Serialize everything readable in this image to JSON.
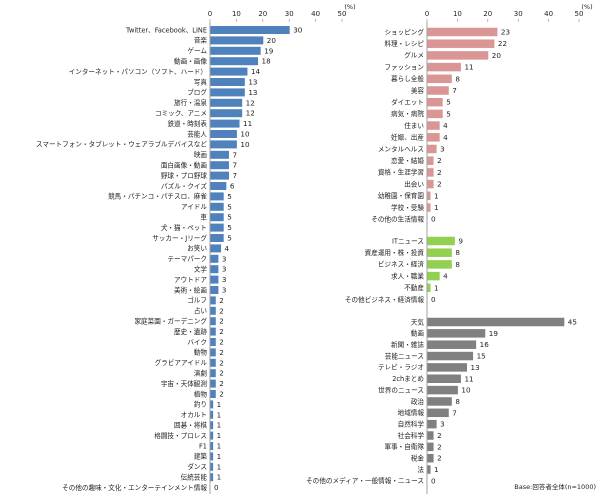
{
  "chart_data": [
    {
      "type": "bar",
      "orientation": "horizontal",
      "unit": "(%)",
      "xlim": [
        0,
        50
      ],
      "ticks": [
        0,
        10,
        20,
        30,
        40,
        50
      ],
      "color": "#4f81bd",
      "categories": [
        "Twitter、Facebook、LINE",
        "音楽",
        "ゲーム",
        "動画・画像",
        "インターネット・パソコン（ソフト、ハード）",
        "写真",
        "ブログ",
        "旅行・温泉",
        "コミック、アニメ",
        "鉄道・時刻表",
        "芸能人",
        "スマートフォン・タブレット・ウェアラブルデバイスなど",
        "映画",
        "面白画像・動画",
        "野球・プロ野球",
        "パズル・クイズ",
        "競馬・パチンコ・パチスロ、麻雀",
        "アイドル",
        "車",
        "犬・猫・ペット",
        "サッカー・Jリーグ",
        "お笑い",
        "テーマパーク",
        "文学",
        "アウトドア",
        "美術・絵画",
        "ゴルフ",
        "占い",
        "家庭菜園・ガーデニング",
        "歴史・遺跡",
        "バイク",
        "動物",
        "グラビアアイドル",
        "演劇",
        "宇宙・天体観測",
        "植物",
        "釣り",
        "オカルト",
        "囲碁・将棋",
        "格闘技・プロレス",
        "F1",
        "建築",
        "ダンス",
        "伝統芸能",
        "その他の趣味・文化・エンターテインメント情報"
      ],
      "values": [
        30,
        20,
        19,
        18,
        14,
        13,
        13,
        12,
        12,
        11,
        10,
        10,
        7,
        7,
        7,
        6,
        5,
        5,
        5,
        5,
        5,
        4,
        3,
        3,
        3,
        3,
        2,
        2,
        2,
        2,
        2,
        2,
        2,
        2,
        2,
        2,
        1,
        1,
        1,
        1,
        1,
        1,
        1,
        1,
        0
      ]
    },
    {
      "type": "bar",
      "orientation": "horizontal",
      "unit": "(%)",
      "xlim": [
        0,
        50
      ],
      "ticks": [
        0,
        10,
        20,
        30,
        40,
        50
      ],
      "groups": [
        {
          "color": "#da9694",
          "categories": [
            "ショッピング",
            "料理・レシピ",
            "グルメ",
            "ファッション",
            "暮らし全般",
            "美容",
            "ダイエット",
            "病気・病院",
            "住まい",
            "妊娠、出産",
            "メンタルヘルス",
            "恋愛・結婚",
            "資格・生涯学習",
            "出会い",
            "幼稚園・保育園",
            "学校・受験",
            "その他の生活情報"
          ],
          "values": [
            23,
            22,
            20,
            11,
            8,
            7,
            5,
            5,
            4,
            4,
            3,
            2,
            2,
            2,
            1,
            1,
            0
          ]
        },
        {
          "color": "#92d050",
          "categories": [
            "ITニュース",
            "資産運用・株・投資",
            "ビジネス・経済",
            "求人・職業",
            "不動産",
            "その他ビジネス・経済情報"
          ],
          "values": [
            9,
            8,
            8,
            4,
            1,
            0
          ]
        },
        {
          "color": "#808080",
          "categories": [
            "天気",
            "動画",
            "新聞・雑誌",
            "芸能ニュース",
            "テレビ・ラジオ",
            "2chまとめ",
            "世界のニュース",
            "政治",
            "地域情報",
            "自然科学",
            "社会科学",
            "軍事・自衛隊",
            "税金",
            "法",
            "その他のメディア・一般情報・ニュース"
          ],
          "values": [
            45,
            19,
            16,
            15,
            13,
            11,
            10,
            8,
            7,
            3,
            2,
            2,
            2,
            1,
            0
          ]
        }
      ]
    }
  ],
  "base_note": "Base:回答者全体(n=1000)"
}
